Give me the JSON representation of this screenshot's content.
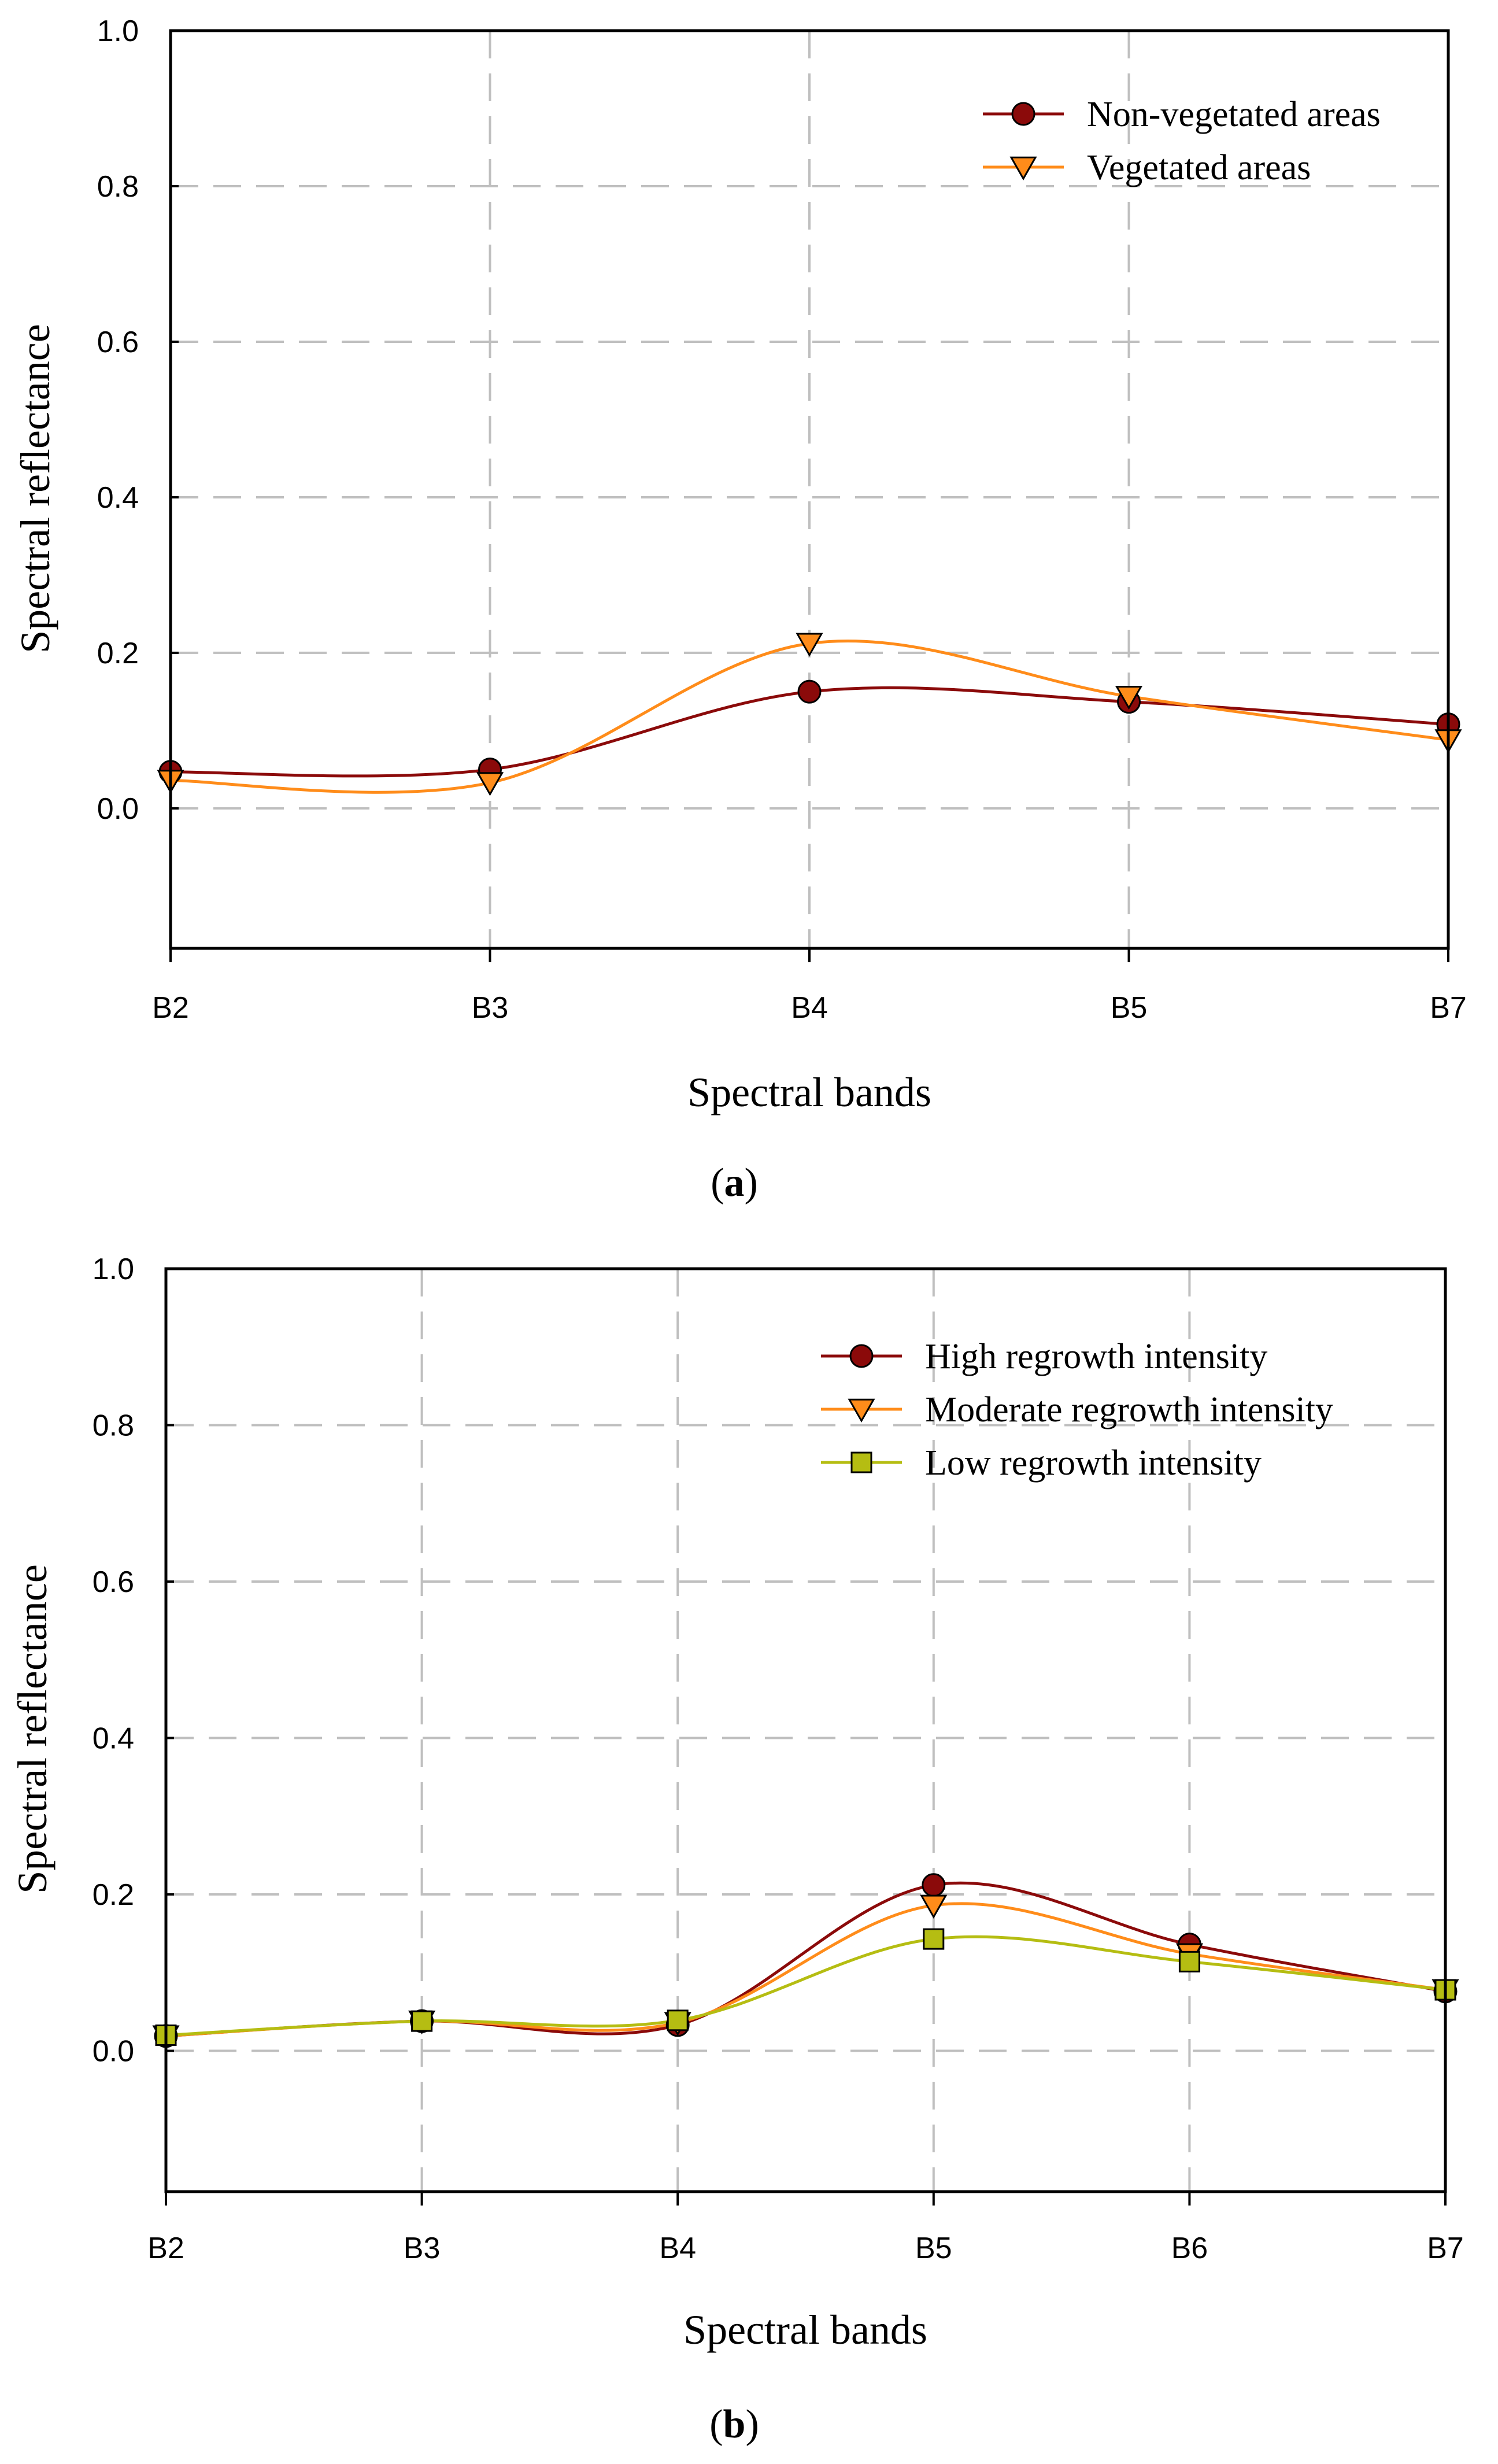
{
  "colors": {
    "non_vegetated": "#8B0A0A",
    "vegetated": "#FF8C1A",
    "high": "#8B0A0A",
    "moderate": "#FF8C1A",
    "low": "#B5BD12",
    "grid": "#BFBFBF",
    "axis": "#000000"
  },
  "chart_data": [
    {
      "type": "line",
      "caption": "a",
      "title": "",
      "xlabel": "Spectral bands",
      "ylabel": "Spectral reflectance",
      "categories": [
        "B2",
        "B3",
        "B4",
        "B5",
        "B7"
      ],
      "ylim": [
        -0.18,
        1.0
      ],
      "yticks": [
        "0.0",
        "0.2",
        "0.4",
        "0.6",
        "0.8",
        "1.0"
      ],
      "legend_position": "top-right",
      "series": [
        {
          "name": "Non-vegetated areas",
          "color_key": "non_vegetated",
          "marker": "circle",
          "values": [
            0.047,
            0.05,
            0.15,
            0.137,
            0.108
          ]
        },
        {
          "name": "Vegetated areas",
          "color_key": "vegetated",
          "marker": "triangle-down",
          "values": [
            0.036,
            0.033,
            0.212,
            0.144,
            0.088
          ]
        }
      ]
    },
    {
      "type": "line",
      "caption": "b",
      "title": "",
      "xlabel": "Spectral bands",
      "ylabel": "Spectral reflectance",
      "categories": [
        "B2",
        "B3",
        "B4",
        "B5",
        "B6",
        "B7"
      ],
      "ylim": [
        -0.18,
        1.0
      ],
      "yticks": [
        "0.0",
        "0.2",
        "0.4",
        "0.6",
        "0.8",
        "1.0"
      ],
      "legend_position": "top-right",
      "series": [
        {
          "name": "High regrowth intensity",
          "color_key": "high",
          "marker": "circle",
          "values": [
            0.019,
            0.038,
            0.033,
            0.212,
            0.136,
            0.076
          ]
        },
        {
          "name": "Moderate regrowth intensity",
          "color_key": "moderate",
          "marker": "triangle-down",
          "values": [
            0.019,
            0.038,
            0.036,
            0.186,
            0.124,
            0.078
          ]
        },
        {
          "name": "Low regrowth intensity",
          "color_key": "low",
          "marker": "square",
          "values": [
            0.02,
            0.038,
            0.039,
            0.143,
            0.114,
            0.078
          ]
        }
      ]
    }
  ]
}
